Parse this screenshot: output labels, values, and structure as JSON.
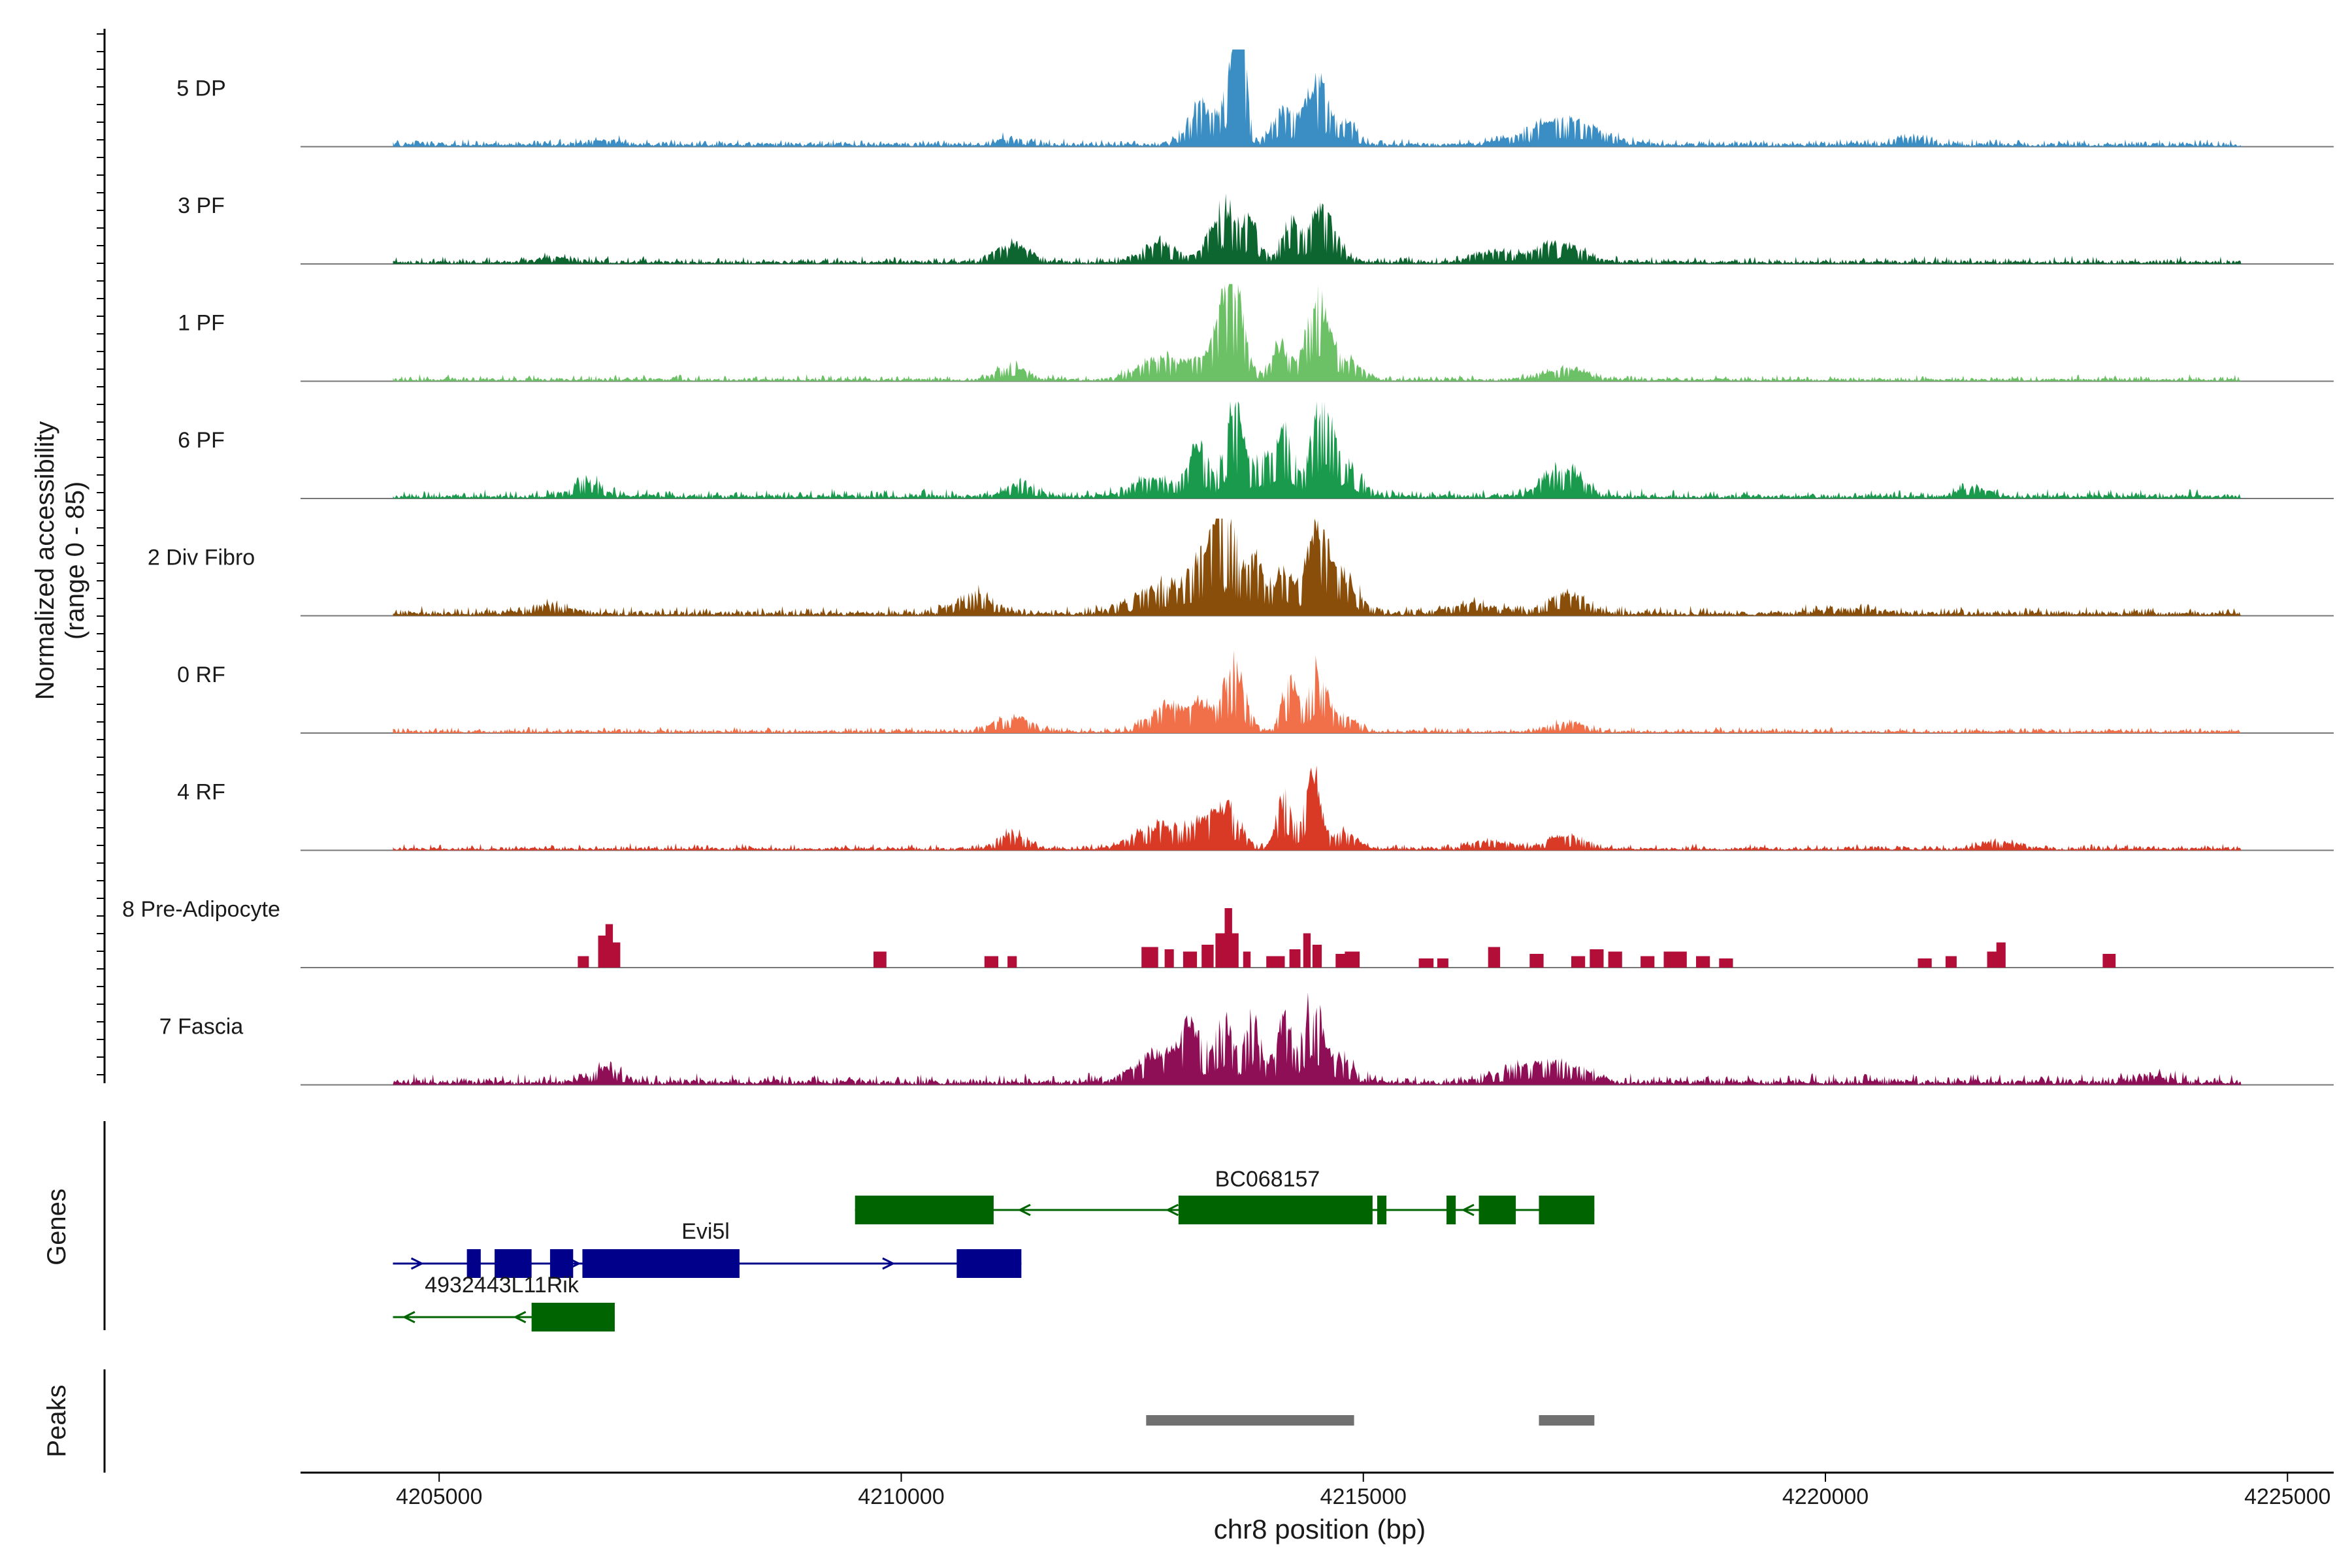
{
  "chart_data": {
    "type": "area",
    "title": "",
    "ylabel": [
      "Normalized accessibility",
      "(range 0 - 85)"
    ],
    "xlabel": "chr8 position (bp)",
    "xlim": [
      4203500,
      4225500
    ],
    "ylim": [
      0,
      85
    ],
    "x_ticks": [
      4205000,
      4210000,
      4215000,
      4220000,
      4225000
    ],
    "x_tick_labels": [
      "4205000",
      "4210000",
      "4215000",
      "4220000",
      "4225000"
    ],
    "track_range": [
      4204500,
      4224500
    ],
    "tracks": [
      {
        "name": "5 DP",
        "color": "#3b8ec4",
        "bg": 2.5,
        "noise": 1.6,
        "peaks": [
          [
            4213250,
            0.14,
            34
          ],
          [
            4213600,
            0.09,
            76
          ],
          [
            4213680,
            0.06,
            60
          ],
          [
            4214150,
            0.12,
            30
          ],
          [
            4214500,
            0.11,
            56
          ],
          [
            4214800,
            0.12,
            20
          ],
          [
            4217150,
            0.35,
            22
          ],
          [
            4206800,
            0.15,
            4
          ],
          [
            4211200,
            0.15,
            5
          ],
          [
            4220900,
            0.2,
            6
          ]
        ]
      },
      {
        "name": "3 PF",
        "color": "#0d6530",
        "bg": 2.0,
        "noise": 1.6,
        "peaks": [
          [
            4211200,
            0.18,
            15
          ],
          [
            4212800,
            0.18,
            16
          ],
          [
            4213500,
            0.15,
            48
          ],
          [
            4213800,
            0.08,
            30
          ],
          [
            4214200,
            0.09,
            35
          ],
          [
            4214550,
            0.15,
            42
          ],
          [
            4216400,
            0.2,
            9
          ],
          [
            4217100,
            0.25,
            16
          ],
          [
            4206300,
            0.2,
            4
          ]
        ]
      },
      {
        "name": "1 PF",
        "color": "#6cc166",
        "bg": 1.8,
        "noise": 1.4,
        "peaks": [
          [
            4211200,
            0.15,
            12
          ],
          [
            4212800,
            0.22,
            20
          ],
          [
            4213200,
            0.12,
            12
          ],
          [
            4213600,
            0.11,
            72
          ],
          [
            4213450,
            0.1,
            40
          ],
          [
            4214100,
            0.1,
            30
          ],
          [
            4214500,
            0.11,
            70
          ],
          [
            4214800,
            0.15,
            18
          ],
          [
            4217200,
            0.2,
            10
          ]
        ]
      },
      {
        "name": "6 PF",
        "color": "#199a4d",
        "bg": 2.4,
        "noise": 2.0,
        "peaks": [
          [
            4206600,
            0.15,
            14
          ],
          [
            4211300,
            0.15,
            10
          ],
          [
            4212700,
            0.2,
            16
          ],
          [
            4213200,
            0.11,
            45
          ],
          [
            4213600,
            0.1,
            80
          ],
          [
            4213900,
            0.1,
            30
          ],
          [
            4214150,
            0.1,
            55
          ],
          [
            4214550,
            0.11,
            78
          ],
          [
            4214800,
            0.15,
            30
          ],
          [
            4217150,
            0.2,
            26
          ],
          [
            4221600,
            0.15,
            8
          ]
        ]
      },
      {
        "name": "2 Div Fibro",
        "color": "#8a4e0b",
        "bg": 2.6,
        "noise": 2.0,
        "peaks": [
          [
            4206200,
            0.2,
            8
          ],
          [
            4210800,
            0.2,
            16
          ],
          [
            4212800,
            0.3,
            22
          ],
          [
            4213500,
            0.15,
            75
          ],
          [
            4213250,
            0.15,
            30
          ],
          [
            4213850,
            0.1,
            40
          ],
          [
            4214150,
            0.1,
            35
          ],
          [
            4214500,
            0.12,
            68
          ],
          [
            4214800,
            0.15,
            30
          ],
          [
            4216200,
            0.25,
            8
          ],
          [
            4217200,
            0.2,
            16
          ],
          [
            4220300,
            0.3,
            4
          ]
        ]
      },
      {
        "name": "0 RF",
        "color": "#f1704a",
        "bg": 1.6,
        "noise": 1.3,
        "peaks": [
          [
            4211200,
            0.2,
            12
          ],
          [
            4212900,
            0.22,
            22
          ],
          [
            4213600,
            0.12,
            55
          ],
          [
            4213250,
            0.1,
            18
          ],
          [
            4214200,
            0.08,
            42
          ],
          [
            4214500,
            0.1,
            52
          ],
          [
            4214800,
            0.12,
            14
          ],
          [
            4217200,
            0.2,
            7
          ]
        ]
      },
      {
        "name": "4 RF",
        "color": "#d93a26",
        "bg": 1.8,
        "noise": 1.4,
        "peaks": [
          [
            4211200,
            0.15,
            12
          ],
          [
            4212800,
            0.25,
            20
          ],
          [
            4213200,
            0.1,
            14
          ],
          [
            4213500,
            0.15,
            38
          ],
          [
            4214150,
            0.08,
            45
          ],
          [
            4214450,
            0.08,
            70
          ],
          [
            4214800,
            0.12,
            14
          ],
          [
            4216400,
            0.2,
            6
          ],
          [
            4217200,
            0.2,
            10
          ],
          [
            4221900,
            0.2,
            5
          ]
        ]
      },
      {
        "name": "8 Pre-Adipocyte",
        "color": "#b20e38",
        "bg": 0,
        "noise": 0,
        "blocky": true,
        "blocks": [
          [
            4206500,
            4206620,
            10
          ],
          [
            4206720,
            4206800,
            28
          ],
          [
            4206800,
            4206880,
            38
          ],
          [
            4206880,
            4206960,
            22
          ],
          [
            4209700,
            4209840,
            14
          ],
          [
            4210900,
            4211050,
            10
          ],
          [
            4211150,
            4211250,
            10
          ],
          [
            4212600,
            4212780,
            18
          ],
          [
            4212850,
            4212950,
            16
          ],
          [
            4213050,
            4213200,
            14
          ],
          [
            4213250,
            4213380,
            20
          ],
          [
            4213400,
            4213500,
            30
          ],
          [
            4213500,
            4213580,
            52
          ],
          [
            4213580,
            4213650,
            30
          ],
          [
            4213700,
            4213780,
            14
          ],
          [
            4213950,
            4214150,
            10
          ],
          [
            4214200,
            4214320,
            16
          ],
          [
            4214350,
            4214430,
            30
          ],
          [
            4214450,
            4214550,
            20
          ],
          [
            4214700,
            4214800,
            12
          ],
          [
            4214800,
            4214960,
            14
          ],
          [
            4215600,
            4215760,
            8
          ],
          [
            4215800,
            4215920,
            8
          ],
          [
            4216350,
            4216480,
            18
          ],
          [
            4216800,
            4216950,
            12
          ],
          [
            4217250,
            4217400,
            10
          ],
          [
            4217450,
            4217600,
            16
          ],
          [
            4217650,
            4217800,
            14
          ],
          [
            4218000,
            4218150,
            10
          ],
          [
            4218250,
            4218500,
            14
          ],
          [
            4218600,
            4218750,
            10
          ],
          [
            4218850,
            4219000,
            8
          ],
          [
            4221000,
            4221150,
            8
          ],
          [
            4221300,
            4221420,
            10
          ],
          [
            4221750,
            4221850,
            14
          ],
          [
            4221850,
            4221950,
            22
          ],
          [
            4223000,
            4223140,
            12
          ]
        ]
      },
      {
        "name": "7 Fascia",
        "color": "#8e0f55",
        "bg": 3.0,
        "noise": 2.4,
        "peaks": [
          [
            4206800,
            0.15,
            12
          ],
          [
            4212800,
            0.25,
            26
          ],
          [
            4213150,
            0.12,
            40
          ],
          [
            4213500,
            0.1,
            48
          ],
          [
            4213800,
            0.09,
            52
          ],
          [
            4214150,
            0.09,
            50
          ],
          [
            4214450,
            0.09,
            75
          ],
          [
            4214750,
            0.15,
            20
          ],
          [
            4216800,
            0.3,
            12
          ],
          [
            4217200,
            0.25,
            10
          ],
          [
            4223500,
            0.2,
            6
          ]
        ]
      }
    ],
    "genes": [
      {
        "name": "BC068157",
        "strand": "-",
        "color": "#006400",
        "row": 0,
        "start": 4209500,
        "end": 4217500,
        "exons": [
          [
            4209500,
            4211000
          ],
          [
            4213000,
            4215100
          ],
          [
            4215150,
            4215250
          ],
          [
            4215900,
            4216000
          ],
          [
            4216250,
            4216650
          ],
          [
            4216900,
            4217500
          ]
        ]
      },
      {
        "name": "Evi5l",
        "strand": "+",
        "color": "#00008b",
        "row": 1,
        "start": 4204500,
        "end": 4211300,
        "exons": [
          [
            4205300,
            4205450
          ],
          [
            4205600,
            4206000
          ],
          [
            4206200,
            4206450
          ],
          [
            4206550,
            4208250
          ],
          [
            4210600,
            4211300
          ]
        ]
      },
      {
        "name": "4932443L11Rik",
        "strand": "-",
        "color": "#006400",
        "row": 2,
        "start": 4204500,
        "end": 4206900,
        "exons": [
          [
            4206000,
            4206900
          ]
        ]
      }
    ],
    "peaks_track_label": "Peaks",
    "genes_track_label": "Genes",
    "peak_regions": [
      [
        4212650,
        4214900
      ],
      [
        4216900,
        4217500
      ]
    ]
  }
}
